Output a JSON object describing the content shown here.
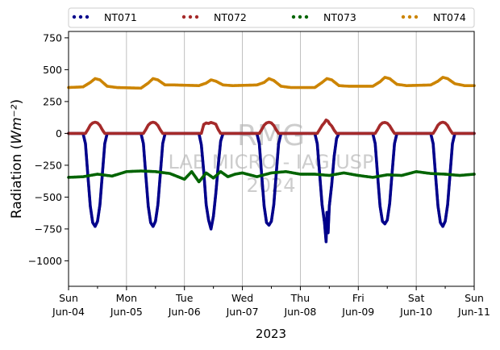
{
  "chart_data": {
    "type": "scatter",
    "xlabel": "2023",
    "ylabel": "Radiation (Wm⁻²)",
    "ylim": [
      -1200,
      800
    ],
    "xlim": [
      "2023-06-04",
      "2023-06-11"
    ],
    "x_ticks": [
      {
        "date": "2023-06-04",
        "day": "Sun",
        "label": "Jun-04"
      },
      {
        "date": "2023-06-05",
        "day": "Mon",
        "label": "Jun-05"
      },
      {
        "date": "2023-06-06",
        "day": "Tue",
        "label": "Jun-06"
      },
      {
        "date": "2023-06-07",
        "day": "Wed",
        "label": "Jun-07"
      },
      {
        "date": "2023-06-08",
        "day": "Thu",
        "label": "Jun-08"
      },
      {
        "date": "2023-06-09",
        "day": "Fri",
        "label": "Jun-09"
      },
      {
        "date": "2023-06-10",
        "day": "Sat",
        "label": "Jun-10"
      },
      {
        "date": "2023-06-11",
        "day": "Sun",
        "label": "Jun-11"
      }
    ],
    "y_ticks": [
      750,
      500,
      250,
      0,
      -250,
      -500,
      -750,
      -1000
    ],
    "y_tick_labels": [
      "750",
      "500",
      "250",
      "0",
      "−250",
      "−500",
      "−750",
      "−1000"
    ],
    "grid": "vertical",
    "legend_position": "top",
    "watermark": [
      "RMG",
      "LAB MICRO - IAG USP",
      "2024"
    ],
    "series": [
      {
        "name": "NT071",
        "color": "#00008b",
        "values": [
          [
            "2023-06-04 00:00",
            0
          ],
          [
            "2023-06-04 06:00",
            0
          ],
          [
            "2023-06-04 07:00",
            -80
          ],
          [
            "2023-06-04 08:00",
            -330
          ],
          [
            "2023-06-04 09:00",
            -570
          ],
          [
            "2023-06-04 10:00",
            -700
          ],
          [
            "2023-06-04 11:00",
            -730
          ],
          [
            "2023-06-04 12:00",
            -690
          ],
          [
            "2023-06-04 13:00",
            -560
          ],
          [
            "2023-06-04 14:00",
            -320
          ],
          [
            "2023-06-04 15:00",
            -80
          ],
          [
            "2023-06-04 16:00",
            0
          ],
          [
            "2023-06-05 06:00",
            0
          ],
          [
            "2023-06-05 07:00",
            -80
          ],
          [
            "2023-06-05 08:00",
            -330
          ],
          [
            "2023-06-05 09:00",
            -570
          ],
          [
            "2023-06-05 10:00",
            -700
          ],
          [
            "2023-06-05 11:00",
            -730
          ],
          [
            "2023-06-05 12:00",
            -690
          ],
          [
            "2023-06-05 13:00",
            -560
          ],
          [
            "2023-06-05 14:00",
            -320
          ],
          [
            "2023-06-05 15:00",
            -80
          ],
          [
            "2023-06-05 16:00",
            0
          ],
          [
            "2023-06-06 06:00",
            0
          ],
          [
            "2023-06-06 07:00",
            -90
          ],
          [
            "2023-06-06 08:00",
            -300
          ],
          [
            "2023-06-06 09:00",
            -560
          ],
          [
            "2023-06-06 10:00",
            -680
          ],
          [
            "2023-06-06 11:00",
            -750
          ],
          [
            "2023-06-06 12:00",
            -650
          ],
          [
            "2023-06-06 13:00",
            -470
          ],
          [
            "2023-06-06 14:00",
            -250
          ],
          [
            "2023-06-06 15:00",
            -60
          ],
          [
            "2023-06-06 16:00",
            0
          ],
          [
            "2023-06-07 06:00",
            0
          ],
          [
            "2023-06-07 07:00",
            -80
          ],
          [
            "2023-06-07 08:00",
            -330
          ],
          [
            "2023-06-07 09:00",
            -570
          ],
          [
            "2023-06-07 10:00",
            -700
          ],
          [
            "2023-06-07 11:00",
            -720
          ],
          [
            "2023-06-07 12:00",
            -690
          ],
          [
            "2023-06-07 13:00",
            -560
          ],
          [
            "2023-06-07 14:00",
            -320
          ],
          [
            "2023-06-07 15:00",
            -80
          ],
          [
            "2023-06-07 16:00",
            0
          ],
          [
            "2023-06-08 06:00",
            0
          ],
          [
            "2023-06-08 07:00",
            -80
          ],
          [
            "2023-06-08 08:00",
            -320
          ],
          [
            "2023-06-08 09:00",
            -560
          ],
          [
            "2023-06-08 10:00",
            -700
          ],
          [
            "2023-06-08 10:40",
            -850
          ],
          [
            "2023-06-08 11:00",
            -620
          ],
          [
            "2023-06-08 11:30",
            -780
          ],
          [
            "2023-06-08 12:00",
            -570
          ],
          [
            "2023-06-08 13:00",
            -400
          ],
          [
            "2023-06-08 14:00",
            -180
          ],
          [
            "2023-06-08 15:00",
            -40
          ],
          [
            "2023-06-08 16:00",
            0
          ],
          [
            "2023-06-09 06:00",
            0
          ],
          [
            "2023-06-09 07:00",
            -80
          ],
          [
            "2023-06-09 08:00",
            -330
          ],
          [
            "2023-06-09 09:00",
            -570
          ],
          [
            "2023-06-09 10:00",
            -690
          ],
          [
            "2023-06-09 11:00",
            -710
          ],
          [
            "2023-06-09 12:00",
            -680
          ],
          [
            "2023-06-09 13:00",
            -550
          ],
          [
            "2023-06-09 14:00",
            -310
          ],
          [
            "2023-06-09 15:00",
            -80
          ],
          [
            "2023-06-09 16:00",
            0
          ],
          [
            "2023-06-10 06:00",
            0
          ],
          [
            "2023-06-10 07:00",
            -80
          ],
          [
            "2023-06-10 08:00",
            -330
          ],
          [
            "2023-06-10 09:00",
            -570
          ],
          [
            "2023-06-10 10:00",
            -700
          ],
          [
            "2023-06-10 11:00",
            -730
          ],
          [
            "2023-06-10 12:00",
            -690
          ],
          [
            "2023-06-10 13:00",
            -560
          ],
          [
            "2023-06-10 14:00",
            -320
          ],
          [
            "2023-06-10 15:00",
            -80
          ],
          [
            "2023-06-10 16:00",
            0
          ],
          [
            "2023-06-11 00:00",
            0
          ]
        ]
      },
      {
        "name": "NT072",
        "color": "#a52a2a",
        "values": [
          [
            "2023-06-04 00:00",
            0
          ],
          [
            "2023-06-04 07:00",
            0
          ],
          [
            "2023-06-04 08:00",
            30
          ],
          [
            "2023-06-04 09:00",
            65
          ],
          [
            "2023-06-04 10:00",
            82
          ],
          [
            "2023-06-04 11:00",
            88
          ],
          [
            "2023-06-04 12:00",
            82
          ],
          [
            "2023-06-04 13:00",
            62
          ],
          [
            "2023-06-04 14:00",
            28
          ],
          [
            "2023-06-04 15:00",
            0
          ],
          [
            "2023-06-05 07:00",
            0
          ],
          [
            "2023-06-05 08:00",
            30
          ],
          [
            "2023-06-05 09:00",
            65
          ],
          [
            "2023-06-05 10:00",
            82
          ],
          [
            "2023-06-05 11:00",
            88
          ],
          [
            "2023-06-05 12:00",
            82
          ],
          [
            "2023-06-05 13:00",
            62
          ],
          [
            "2023-06-05 14:00",
            28
          ],
          [
            "2023-06-05 15:00",
            0
          ],
          [
            "2023-06-06 07:00",
            0
          ],
          [
            "2023-06-06 08:00",
            70
          ],
          [
            "2023-06-06 09:00",
            82
          ],
          [
            "2023-06-06 10:00",
            78
          ],
          [
            "2023-06-06 11:00",
            86
          ],
          [
            "2023-06-06 12:00",
            80
          ],
          [
            "2023-06-06 13:00",
            72
          ],
          [
            "2023-06-06 14:00",
            30
          ],
          [
            "2023-06-06 15:00",
            0
          ],
          [
            "2023-06-07 07:00",
            0
          ],
          [
            "2023-06-07 08:00",
            30
          ],
          [
            "2023-06-07 09:00",
            65
          ],
          [
            "2023-06-07 10:00",
            82
          ],
          [
            "2023-06-07 11:00",
            88
          ],
          [
            "2023-06-07 12:00",
            82
          ],
          [
            "2023-06-07 13:00",
            62
          ],
          [
            "2023-06-07 14:00",
            28
          ],
          [
            "2023-06-07 15:00",
            0
          ],
          [
            "2023-06-08 07:00",
            0
          ],
          [
            "2023-06-08 08:00",
            30
          ],
          [
            "2023-06-08 09:00",
            62
          ],
          [
            "2023-06-08 10:00",
            85
          ],
          [
            "2023-06-08 10:40",
            105
          ],
          [
            "2023-06-08 11:30",
            95
          ],
          [
            "2023-06-08 12:00",
            78
          ],
          [
            "2023-06-08 13:00",
            58
          ],
          [
            "2023-06-08 14:00",
            25
          ],
          [
            "2023-06-08 15:00",
            0
          ],
          [
            "2023-06-09 07:00",
            0
          ],
          [
            "2023-06-09 08:00",
            30
          ],
          [
            "2023-06-09 09:00",
            65
          ],
          [
            "2023-06-09 10:00",
            82
          ],
          [
            "2023-06-09 11:00",
            86
          ],
          [
            "2023-06-09 12:00",
            80
          ],
          [
            "2023-06-09 13:00",
            60
          ],
          [
            "2023-06-09 14:00",
            28
          ],
          [
            "2023-06-09 15:00",
            0
          ],
          [
            "2023-06-10 07:00",
            0
          ],
          [
            "2023-06-10 08:00",
            30
          ],
          [
            "2023-06-10 09:00",
            65
          ],
          [
            "2023-06-10 10:00",
            82
          ],
          [
            "2023-06-10 11:00",
            88
          ],
          [
            "2023-06-10 12:00",
            82
          ],
          [
            "2023-06-10 13:00",
            62
          ],
          [
            "2023-06-10 14:00",
            28
          ],
          [
            "2023-06-10 15:00",
            0
          ],
          [
            "2023-06-11 00:00",
            0
          ]
        ]
      },
      {
        "name": "NT073",
        "color": "#006400",
        "values": [
          [
            "2023-06-04 00:00",
            -345
          ],
          [
            "2023-06-04 06:00",
            -340
          ],
          [
            "2023-06-04 12:00",
            -320
          ],
          [
            "2023-06-04 18:00",
            -335
          ],
          [
            "2023-06-05 00:00",
            -300
          ],
          [
            "2023-06-05 06:00",
            -295
          ],
          [
            "2023-06-05 12:00",
            -300
          ],
          [
            "2023-06-05 18:00",
            -315
          ],
          [
            "2023-06-06 00:00",
            -360
          ],
          [
            "2023-06-06 03:00",
            -300
          ],
          [
            "2023-06-06 06:00",
            -380
          ],
          [
            "2023-06-06 09:00",
            -310
          ],
          [
            "2023-06-06 12:00",
            -350
          ],
          [
            "2023-06-06 15:00",
            -300
          ],
          [
            "2023-06-06 18:00",
            -340
          ],
          [
            "2023-06-06 21:00",
            -320
          ],
          [
            "2023-06-07 00:00",
            -310
          ],
          [
            "2023-06-07 06:00",
            -340
          ],
          [
            "2023-06-07 12:00",
            -310
          ],
          [
            "2023-06-07 18:00",
            -300
          ],
          [
            "2023-06-08 00:00",
            -320
          ],
          [
            "2023-06-08 06:00",
            -320
          ],
          [
            "2023-06-08 12:00",
            -330
          ],
          [
            "2023-06-08 18:00",
            -310
          ],
          [
            "2023-06-09 00:00",
            -330
          ],
          [
            "2023-06-09 06:00",
            -345
          ],
          [
            "2023-06-09 12:00",
            -325
          ],
          [
            "2023-06-09 18:00",
            -330
          ],
          [
            "2023-06-10 00:00",
            -300
          ],
          [
            "2023-06-10 06:00",
            -315
          ],
          [
            "2023-06-10 12:00",
            -320
          ],
          [
            "2023-06-10 18:00",
            -330
          ],
          [
            "2023-06-11 00:00",
            -320
          ]
        ]
      },
      {
        "name": "NT074",
        "color": "#cc8400",
        "values": [
          [
            "2023-06-04 00:00",
            360
          ],
          [
            "2023-06-04 06:00",
            365
          ],
          [
            "2023-06-04 09:00",
            400
          ],
          [
            "2023-06-04 11:00",
            430
          ],
          [
            "2023-06-04 13:00",
            420
          ],
          [
            "2023-06-04 16:00",
            370
          ],
          [
            "2023-06-04 20:00",
            360
          ],
          [
            "2023-06-05 06:00",
            355
          ],
          [
            "2023-06-05 09:00",
            395
          ],
          [
            "2023-06-05 11:00",
            430
          ],
          [
            "2023-06-05 13:00",
            420
          ],
          [
            "2023-06-05 16:00",
            380
          ],
          [
            "2023-06-05 20:00",
            380
          ],
          [
            "2023-06-06 06:00",
            375
          ],
          [
            "2023-06-06 09:00",
            395
          ],
          [
            "2023-06-06 11:00",
            420
          ],
          [
            "2023-06-06 13:00",
            410
          ],
          [
            "2023-06-06 16:00",
            380
          ],
          [
            "2023-06-06 20:00",
            375
          ],
          [
            "2023-06-07 06:00",
            380
          ],
          [
            "2023-06-07 09:00",
            400
          ],
          [
            "2023-06-07 11:00",
            430
          ],
          [
            "2023-06-07 13:00",
            415
          ],
          [
            "2023-06-07 16:00",
            370
          ],
          [
            "2023-06-07 20:00",
            360
          ],
          [
            "2023-06-08 06:00",
            360
          ],
          [
            "2023-06-08 09:00",
            400
          ],
          [
            "2023-06-08 11:00",
            430
          ],
          [
            "2023-06-08 13:00",
            420
          ],
          [
            "2023-06-08 16:00",
            375
          ],
          [
            "2023-06-08 20:00",
            370
          ],
          [
            "2023-06-09 06:00",
            370
          ],
          [
            "2023-06-09 09:00",
            405
          ],
          [
            "2023-06-09 11:00",
            440
          ],
          [
            "2023-06-09 13:00",
            430
          ],
          [
            "2023-06-09 16:00",
            385
          ],
          [
            "2023-06-09 20:00",
            375
          ],
          [
            "2023-06-10 06:00",
            380
          ],
          [
            "2023-06-10 09:00",
            410
          ],
          [
            "2023-06-10 11:00",
            440
          ],
          [
            "2023-06-10 13:00",
            430
          ],
          [
            "2023-06-10 16:00",
            390
          ],
          [
            "2023-06-10 20:00",
            375
          ],
          [
            "2023-06-11 00:00",
            375
          ]
        ]
      }
    ]
  }
}
